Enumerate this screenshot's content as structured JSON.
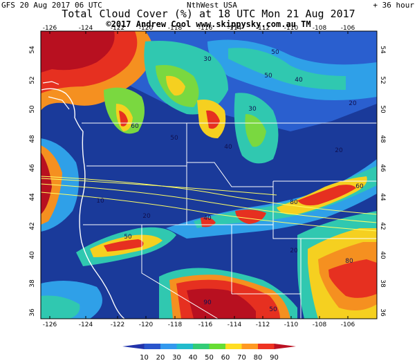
{
  "header": {
    "run_label": "GFS 20 Aug 2017 06 UTC",
    "region": "NthWest USA",
    "lead_time": "+ 36 hour",
    "title": "Total Cloud Cover (%) at 18 UTC Mon 21 Aug 2017",
    "credit": "©2017 Andrew Cool  www.skippysky.com.au  TM"
  },
  "map": {
    "lon_ticks": [
      "-126",
      "-124",
      "-122",
      "-120",
      "-118",
      "-116",
      "-114",
      "-112",
      "-110",
      "-108",
      "-106"
    ],
    "lat_ticks": [
      "54",
      "52",
      "50",
      "48",
      "46",
      "44",
      "42",
      "40",
      "38",
      "36"
    ],
    "contour_labels": [
      "50",
      "30",
      "50",
      "40",
      "20",
      "30",
      "60",
      "50",
      "40",
      "20",
      "10",
      "20",
      "40",
      "80",
      "60",
      "50",
      "20",
      "80",
      "90",
      "50"
    ],
    "eclipse_path": "total solar eclipse path (yellow lines)"
  },
  "colorbar": {
    "labels": [
      "10",
      "20",
      "30",
      "40",
      "50",
      "60",
      "70",
      "80",
      "90"
    ],
    "colors": [
      "#2233aa",
      "#2a55cc",
      "#3399ee",
      "#22bbcc",
      "#33cc77",
      "#66dd33",
      "#ffdd22",
      "#ff9922",
      "#ee3322",
      "#bb1122"
    ]
  },
  "palette": {
    "clear": "#1a3a9a",
    "low": "#2a5fcf",
    "mid_low": "#2fa0e8",
    "mid": "#30c8b0",
    "mid_high": "#7ad840",
    "high": "#f5d020",
    "higher": "#f59020",
    "very_high": "#e63020",
    "overcast": "#b81020"
  }
}
